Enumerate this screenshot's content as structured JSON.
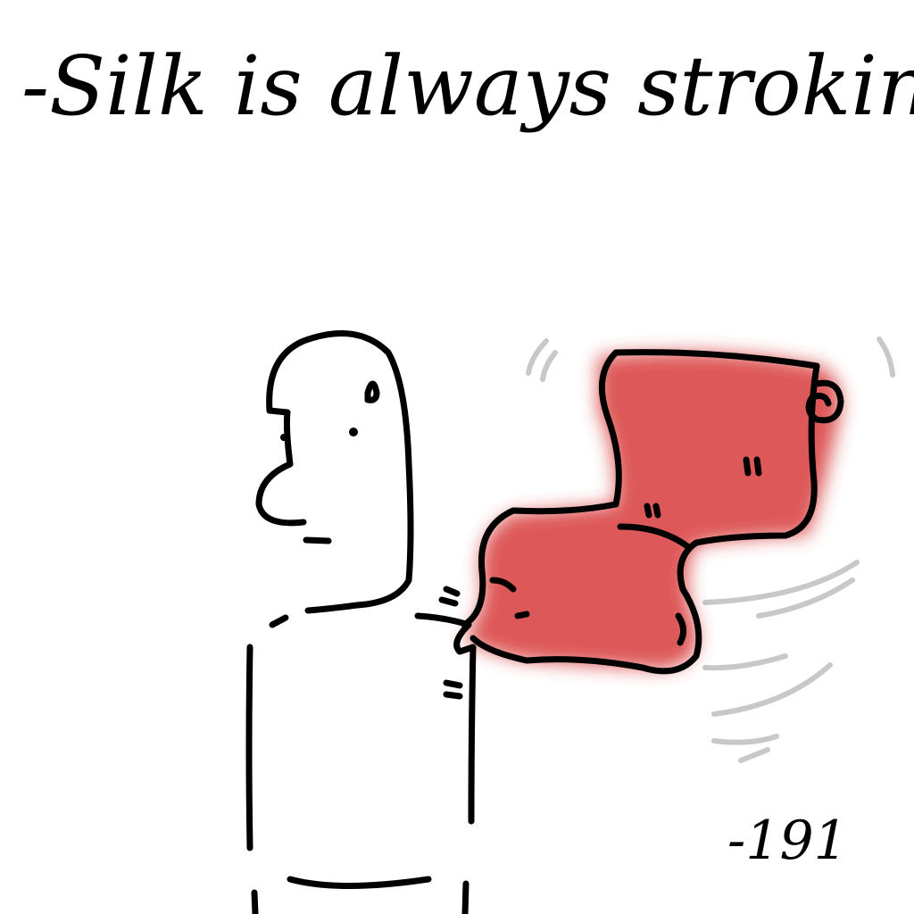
{
  "caption": {
    "title": "-Silk is always stroking",
    "signature": "-191"
  }
}
